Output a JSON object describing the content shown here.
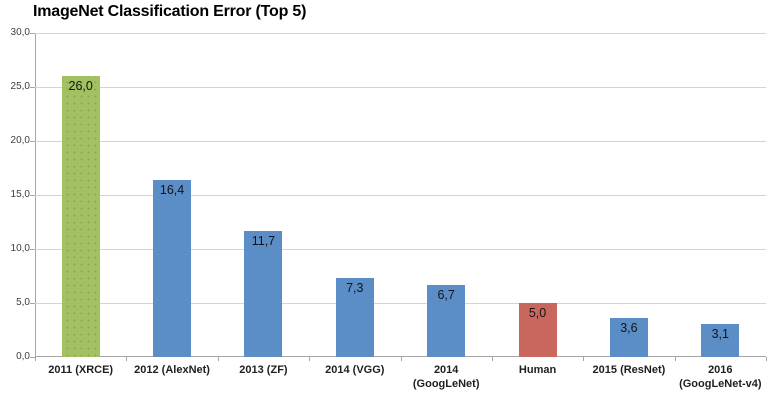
{
  "chart_data": {
    "type": "bar",
    "title": "ImageNet Classification Error (Top 5)",
    "xlabel": "",
    "ylabel": "",
    "ylim": [
      0,
      30
    ],
    "grid": true,
    "legend": null,
    "yticks": [
      {
        "value": 30,
        "label": "30,0"
      },
      {
        "value": 25,
        "label": "25,0"
      },
      {
        "value": 20,
        "label": "20,0"
      },
      {
        "value": 15,
        "label": "15,0"
      },
      {
        "value": 10,
        "label": "10,0"
      },
      {
        "value": 5,
        "label": "5,0"
      },
      {
        "value": 0,
        "label": "0,0"
      }
    ],
    "categories": [
      "2011 (XRCE)",
      "2012 (AlexNet)",
      "2013 (ZF)",
      "2014 (VGG)",
      "2014\n(GoogLeNet)",
      "Human",
      "2015 (ResNet)",
      "2016\n(GoogLeNet-v4)"
    ],
    "values": [
      26.0,
      16.4,
      11.7,
      7.3,
      6.7,
      5.0,
      3.6,
      3.1
    ],
    "value_labels": [
      "26,0",
      "16,4",
      "11,7",
      "7,3",
      "6,7",
      "5,0",
      "3,6",
      "3,1"
    ],
    "bar_colors": [
      "#a3c162",
      "#5b8ec6",
      "#5b8ec6",
      "#5b8ec6",
      "#5b8ec6",
      "#c9675f",
      "#5b8ec6",
      "#5b8ec6"
    ],
    "bar_textured": [
      true,
      false,
      false,
      false,
      false,
      false,
      false,
      false
    ],
    "colors": {
      "green_bar": "#a3c162",
      "blue_bar": "#5b8ec6",
      "red_bar": "#c9675f",
      "gridline": "#d4d4d4",
      "axis": "#a6a6a6",
      "text": "#141414"
    }
  }
}
